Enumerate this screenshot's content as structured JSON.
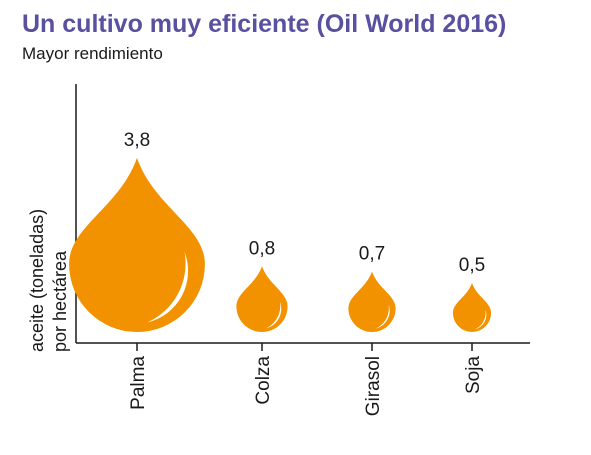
{
  "title": "Un cultivo muy eficiente (Oil World 2016)",
  "subtitle": "Mayor rendimiento",
  "colors": {
    "drop": "#f39200",
    "title": "#5a4fa0",
    "highlight": "#ffffff"
  },
  "chart_data": {
    "type": "bar",
    "mark": "oil-drop",
    "title": "Un cultivo muy eficiente (Oil World 2016)",
    "subtitle": "Mayor rendimiento",
    "ylabel_line1": "aceite (toneladas)",
    "ylabel_line2": "por hectárea",
    "xlabel": "",
    "categories": [
      "Palma",
      "Colza",
      "Girasol",
      "Soja"
    ],
    "values": [
      3.8,
      0.8,
      0.7,
      0.5
    ],
    "value_labels": [
      "3,8",
      "0,8",
      "0,7",
      "0,5"
    ],
    "grid": false,
    "legend": "none"
  }
}
